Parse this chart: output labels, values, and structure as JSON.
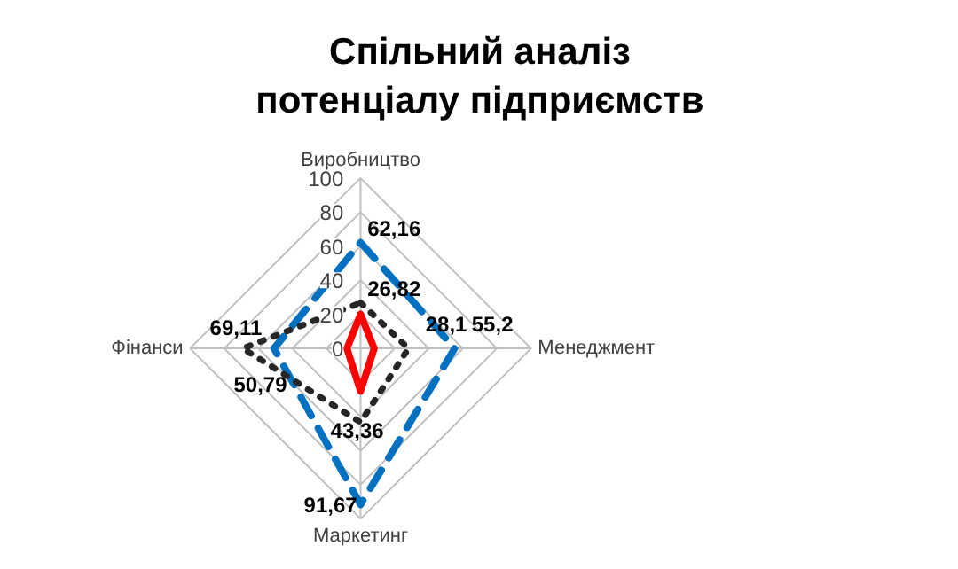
{
  "chart_data": {
    "type": "radar",
    "title": "Спільний аналіз потенціалу підприємств",
    "categories": [
      "Виробництво",
      "Менеджмент",
      "Маркетинг",
      "Фінанси"
    ],
    "ylim": [
      0,
      100
    ],
    "yticks": [
      0,
      20,
      40,
      60,
      80,
      100
    ],
    "grid": true,
    "series": [
      {
        "color": "#0070c0",
        "line_style": "dashed",
        "values": [
          62.16,
          55.2,
          91.67,
          50.79
        ],
        "value_labels": [
          "62,16",
          "55,2",
          "91,67",
          "50,79"
        ]
      },
      {
        "color": "#ff0000",
        "line_style": "solid",
        "values": [
          20,
          8,
          25,
          8
        ]
      },
      {
        "color": "#262626",
        "line_style": "dotted",
        "values": [
          26.82,
          28.1,
          43.36,
          69.11
        ],
        "value_labels": [
          "26,82",
          "28,1",
          "43,36",
          "69,11"
        ]
      }
    ]
  }
}
